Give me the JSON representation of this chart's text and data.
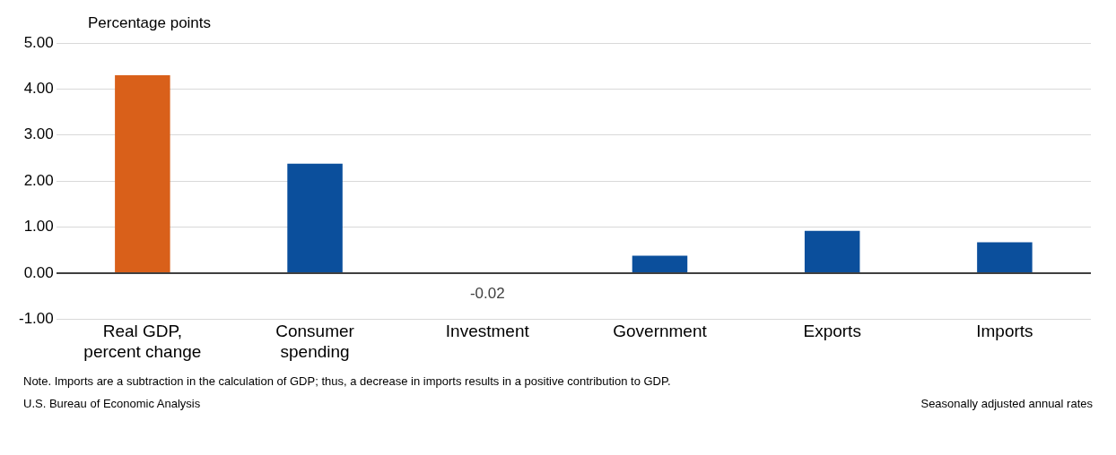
{
  "chart_data": {
    "type": "bar",
    "ylabel": "Percentage points",
    "categories": [
      "Real GDP, percent change",
      "Consumer spending",
      "Investment",
      "Government",
      "Exports",
      "Imports"
    ],
    "values": [
      4.3,
      2.38,
      -0.02,
      0.38,
      0.92,
      0.67
    ],
    "colors": [
      "#d9601a",
      "#0b4f9c",
      "#0b4f9c",
      "#0b4f9c",
      "#0b4f9c",
      "#0b4f9c"
    ],
    "value_labels": [
      null,
      null,
      "-0.02",
      null,
      null,
      null
    ],
    "ylim": [
      -1,
      5
    ],
    "yticks": [
      {
        "value": -1,
        "label": "-1.00"
      },
      {
        "value": 0,
        "label": "0.00"
      },
      {
        "value": 1,
        "label": "1.00"
      },
      {
        "value": 2,
        "label": "2.00"
      },
      {
        "value": 3,
        "label": "3.00"
      },
      {
        "value": 4,
        "label": "4.00"
      },
      {
        "value": 5,
        "label": "5.00"
      }
    ],
    "grid": "y",
    "legend": false,
    "annotations": [
      "Note. Imports are a subtraction in the calculation of GDP; thus, a decrease in imports results in a positive contribution to GDP.",
      "U.S. Bureau of Economic Analysis",
      "Seasonally adjusted annual rates"
    ]
  }
}
